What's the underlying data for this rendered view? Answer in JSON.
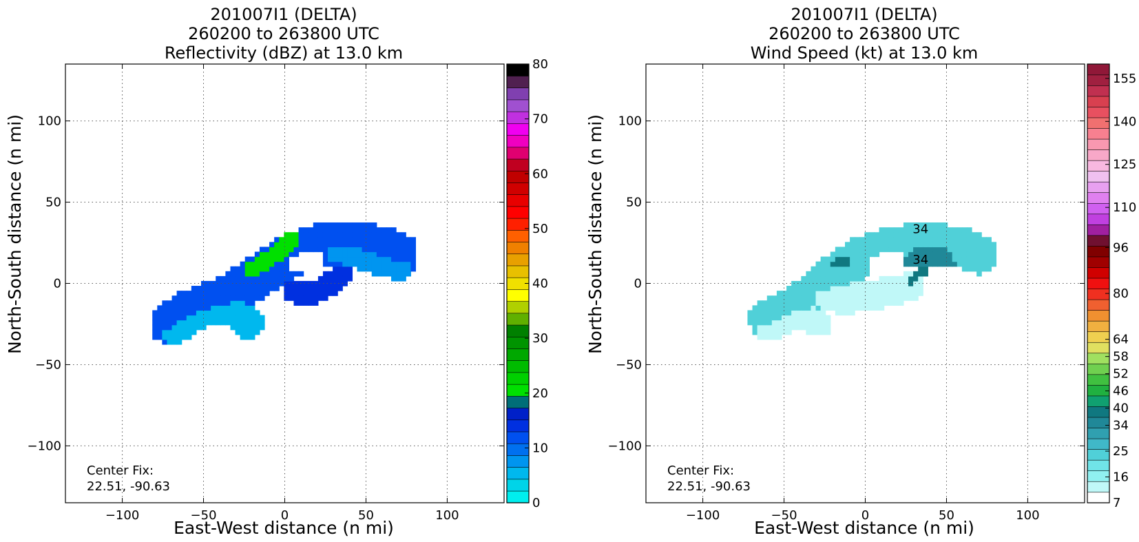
{
  "chart_data": [
    {
      "type": "heatmap",
      "title_lines": [
        "201007I1 (DELTA)",
        "260200 to 263800 UTC",
        "Reflectivity (dBZ) at 13.0 km"
      ],
      "xlabel": "East-West distance (n mi)",
      "ylabel": "North-South distance (n mi)",
      "xlim": [
        -135,
        135
      ],
      "ylim": [
        -135,
        135
      ],
      "x_ticks": [
        -100,
        -50,
        0,
        50,
        100
      ],
      "y_ticks": [
        -100,
        -50,
        0,
        50,
        100
      ],
      "x_tick_labels": [
        "−100",
        "−50",
        "0",
        "50",
        "100"
      ],
      "y_tick_labels": [
        "−100",
        "−50",
        "0",
        "50",
        "100"
      ],
      "grid": true,
      "center_fix_label": "Center Fix:",
      "center_fix_value": "22.51, -90.63",
      "colorbar": {
        "min": 0,
        "max": 80,
        "tick_values": [
          0,
          10,
          20,
          30,
          40,
          50,
          60,
          70,
          80
        ],
        "tick_labels": [
          "0",
          "10",
          "20",
          "30",
          "40",
          "50",
          "60",
          "70",
          "80"
        ],
        "colors": [
          "#00eeee",
          "#00d4e8",
          "#00b8ee",
          "#0095f0",
          "#0070f0",
          "#0050f0",
          "#0030e0",
          "#0020c8",
          "#006e78",
          "#00e000",
          "#00d000",
          "#00bb00",
          "#00a800",
          "#009400",
          "#008000",
          "#60b000",
          "#b0d000",
          "#ffff00",
          "#f0e000",
          "#e8c000",
          "#e8a000",
          "#f08000",
          "#ff6000",
          "#ff2000",
          "#ff0000",
          "#e80000",
          "#d00000",
          "#c00000",
          "#c00020",
          "#e00070",
          "#f000c0",
          "#f000f0",
          "#c030e0",
          "#a050d0",
          "#8040b0",
          "#502050",
          "#000000"
        ]
      },
      "field": {
        "value_type": "reflectivity_dBZ",
        "regions": [
          {
            "type": "band",
            "points": [
              [
                -70,
                -25
              ],
              [
                -60,
                -18
              ],
              [
                -45,
                -12
              ],
              [
                -30,
                -5
              ],
              [
                -15,
                5
              ],
              [
                0,
                15
              ],
              [
                15,
                22
              ],
              [
                30,
                25
              ],
              [
                45,
                25
              ],
              [
                60,
                22
              ],
              [
                70,
                18
              ]
            ],
            "width": 26,
            "value": 12
          },
          {
            "type": "band",
            "points": [
              [
                -68,
                -28
              ],
              [
                -55,
                -20
              ],
              [
                -40,
                -15
              ],
              [
                -30,
                -18
              ],
              [
                -22,
                -25
              ]
            ],
            "width": 18,
            "value": 5
          },
          {
            "type": "band",
            "points": [
              [
                -20,
                8
              ],
              [
                -10,
                15
              ],
              [
                0,
                22
              ],
              [
                5,
                28
              ]
            ],
            "width": 10,
            "value": 20
          },
          {
            "type": "band",
            "points": [
              [
                30,
                22
              ],
              [
                45,
                18
              ],
              [
                60,
                12
              ],
              [
                70,
                10
              ]
            ],
            "width": 16,
            "value": 7
          },
          {
            "type": "band",
            "points": [
              [
                5,
                -5
              ],
              [
                20,
                -5
              ],
              [
                35,
                5
              ]
            ],
            "width": 14,
            "value": 13
          },
          {
            "type": "hole",
            "points": [
              [
                8,
                12
              ],
              [
                18,
                14
              ]
            ],
            "width": 12
          }
        ]
      }
    },
    {
      "type": "heatmap",
      "title_lines": [
        "201007I1 (DELTA)",
        "260200 to 263800 UTC",
        "Wind Speed (kt) at 13.0 km"
      ],
      "xlabel": "East-West distance (n mi)",
      "ylabel": "North-South distance (n mi)",
      "xlim": [
        -135,
        135
      ],
      "ylim": [
        -135,
        135
      ],
      "x_ticks": [
        -100,
        -50,
        0,
        50,
        100
      ],
      "y_ticks": [
        -100,
        -50,
        0,
        50,
        100
      ],
      "x_tick_labels": [
        "−100",
        "−50",
        "0",
        "50",
        "100"
      ],
      "y_tick_labels": [
        "−100",
        "−50",
        "0",
        "50",
        "100"
      ],
      "grid": true,
      "center_fix_label": "Center Fix:",
      "center_fix_value": "22.51, -90.63",
      "contour_labels": [
        {
          "x": 34,
          "y": 31,
          "text": "34"
        },
        {
          "x": 34,
          "y": 12,
          "text": "34"
        }
      ],
      "colorbar": {
        "min": 7,
        "max": 160,
        "tick_values": [
          7,
          16,
          25,
          34,
          40,
          46,
          52,
          58,
          64,
          80,
          96,
          110,
          125,
          140,
          155
        ],
        "tick_labels": [
          "7",
          "16",
          "25",
          "34",
          "40",
          "46",
          "52",
          "58",
          "64",
          "80",
          "96",
          "110",
          "125",
          "140",
          "155"
        ],
        "colors": [
          "#ffffff",
          "#c0f8f8",
          "#90f0f0",
          "#70e4e8",
          "#50d0d8",
          "#40b8c8",
          "#30a0b0",
          "#208898",
          "#107880",
          "#10a070",
          "#20b040",
          "#40c040",
          "#70d050",
          "#a0e060",
          "#e0e060",
          "#f0d050",
          "#f0b040",
          "#f09030",
          "#f06030",
          "#f03020",
          "#f01010",
          "#d00000",
          "#a00000",
          "#800000",
          "#701030",
          "#a020a0",
          "#c040e0",
          "#d060f0",
          "#e080f0",
          "#e8a0f0",
          "#f0c0f0",
          "#f8b8e0",
          "#f8a8c8",
          "#f898b0",
          "#f88090",
          "#f07070",
          "#e85060",
          "#d84050",
          "#c03050",
          "#a02040",
          "#901838"
        ]
      },
      "field": {
        "value_type": "wind_kt",
        "regions": [
          {
            "type": "band",
            "points": [
              [
                -60,
                -22
              ],
              [
                -45,
                -15
              ],
              [
                -30,
                -5
              ],
              [
                -20,
                5
              ],
              [
                -10,
                12
              ],
              [
                0,
                18
              ],
              [
                15,
                22
              ],
              [
                30,
                25
              ],
              [
                45,
                25
              ],
              [
                60,
                22
              ],
              [
                70,
                18
              ]
            ],
            "width": 24,
            "value": 22
          },
          {
            "type": "band",
            "points": [
              [
                -60,
                -28
              ],
              [
                -48,
                -22
              ],
              [
                -38,
                -20
              ],
              [
                -28,
                -25
              ]
            ],
            "width": 16,
            "value": 12
          },
          {
            "type": "band",
            "points": [
              [
                -30,
                -5
              ],
              [
                -15,
                -10
              ],
              [
                0,
                -8
              ],
              [
                15,
                -5
              ],
              [
                28,
                -2
              ]
            ],
            "width": 18,
            "value": 14
          },
          {
            "type": "band",
            "points": [
              [
                32,
                20
              ],
              [
                40,
                22
              ],
              [
                48,
                20
              ]
            ],
            "width": 22,
            "value": 34
          },
          {
            "type": "band",
            "points": [
              [
                -18,
                12
              ],
              [
                -12,
                14
              ]
            ],
            "width": 6,
            "value": 38
          },
          {
            "type": "band",
            "points": [
              [
                28,
                2
              ],
              [
                35,
                8
              ]
            ],
            "width": 6,
            "value": 38
          },
          {
            "type": "hole",
            "points": [
              [
                8,
                12
              ],
              [
                18,
                14
              ]
            ],
            "width": 12
          }
        ]
      }
    }
  ]
}
